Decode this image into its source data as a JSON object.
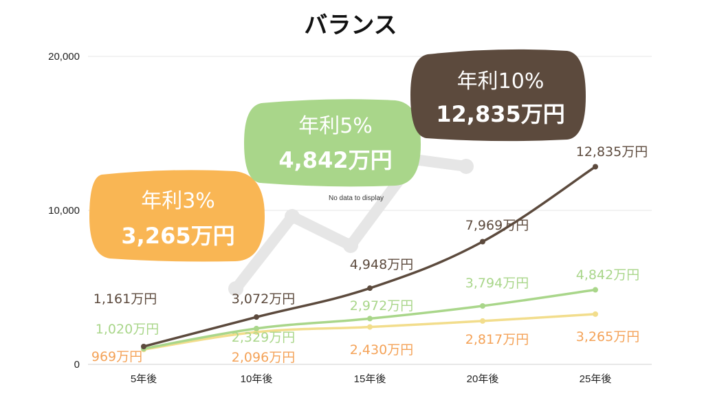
{
  "chart_data": {
    "type": "line",
    "title": "バランス",
    "categories": [
      "5年後",
      "10年後",
      "15年後",
      "20年後",
      "25年後"
    ],
    "ylim": [
      0,
      20000
    ],
    "yticks": [
      0,
      10000,
      20000
    ],
    "ytick_labels": [
      "0",
      "10,000",
      "20,000"
    ],
    "grid": true,
    "unit_suffix": "万円",
    "series": [
      {
        "values": [
          969,
          2096,
          2430,
          2817,
          3265
        ],
        "labels": [
          "969万円",
          "2,096万円",
          "2,430万円",
          "2,817万円",
          "3,265万円"
        ],
        "color": "#f2dd8c",
        "label_color": "#f4a257"
      },
      {
        "values": [
          1020,
          2329,
          2972,
          3794,
          4842
        ],
        "labels": [
          "1,020万円",
          "2,329万円",
          "2,972万円",
          "3,794万円",
          "4,842万円"
        ],
        "color": "#a9d68a",
        "label_color": "#a9d68a"
      },
      {
        "values": [
          1161,
          3072,
          4948,
          7969,
          12835
        ],
        "labels": [
          "1,161万円",
          "3,072万円",
          "4,948万円",
          "7,969万円",
          "12,835万円"
        ],
        "color": "#5c4a3d",
        "label_color": "#5c4a3d"
      }
    ],
    "callouts": [
      {
        "rate": "年利3%",
        "value": "3,265万円",
        "color": "#f9b654"
      },
      {
        "rate": "年利5%",
        "value": "4,842万円",
        "color": "#a9d68a"
      },
      {
        "rate": "年利10%",
        "value": "12,835万円",
        "color": "#5c4a3d"
      }
    ],
    "placeholder_text": "No data to display"
  }
}
